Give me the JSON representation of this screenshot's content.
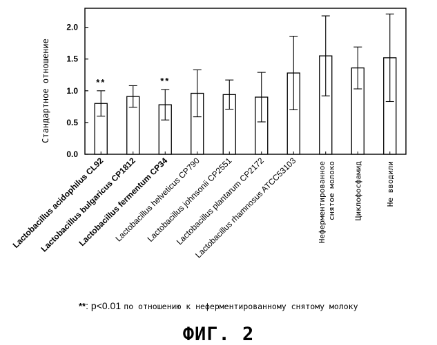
{
  "chart_data": {
    "type": "bar",
    "ylabel": "Стандартное отношение",
    "ylim": [
      0,
      2.3
    ],
    "yticks": [
      "0.0",
      "0.5",
      "1.0",
      "1.5",
      "2.0"
    ],
    "categories": [
      "Lactobacillus acidophilus CL92",
      "Lactobacillus bulgaricus CP1812",
      "Lactobacillus fermentum CP34",
      "Lactobacillus helveticus CP790",
      "Lactobacillus johnsonii CP2551",
      "Lactobacillus plantarum CP2172",
      "Lactobacillus rhamnosus ATCC53103",
      "Неферментированное снятое молоко",
      "Циклофосфамид",
      "Не вводили"
    ],
    "values": [
      0.8,
      0.91,
      0.78,
      0.96,
      0.94,
      0.9,
      1.28,
      1.55,
      1.36,
      1.52
    ],
    "errors": [
      0.2,
      0.17,
      0.24,
      0.37,
      0.23,
      0.39,
      0.58,
      0.63,
      0.33,
      0.69
    ],
    "significance": [
      "**",
      "",
      "**",
      "",
      "",
      "",
      "",
      "",
      "",
      ""
    ],
    "bold_labels": [
      true,
      true,
      true,
      false,
      false,
      false,
      false,
      false,
      false,
      false
    ],
    "grid": false
  },
  "footnote": {
    "mark": "**",
    "pvalue": ": p<0.01",
    "text": "по отношению к неферментированному снятому молоку"
  },
  "figure_label": "ФИГ. 2"
}
